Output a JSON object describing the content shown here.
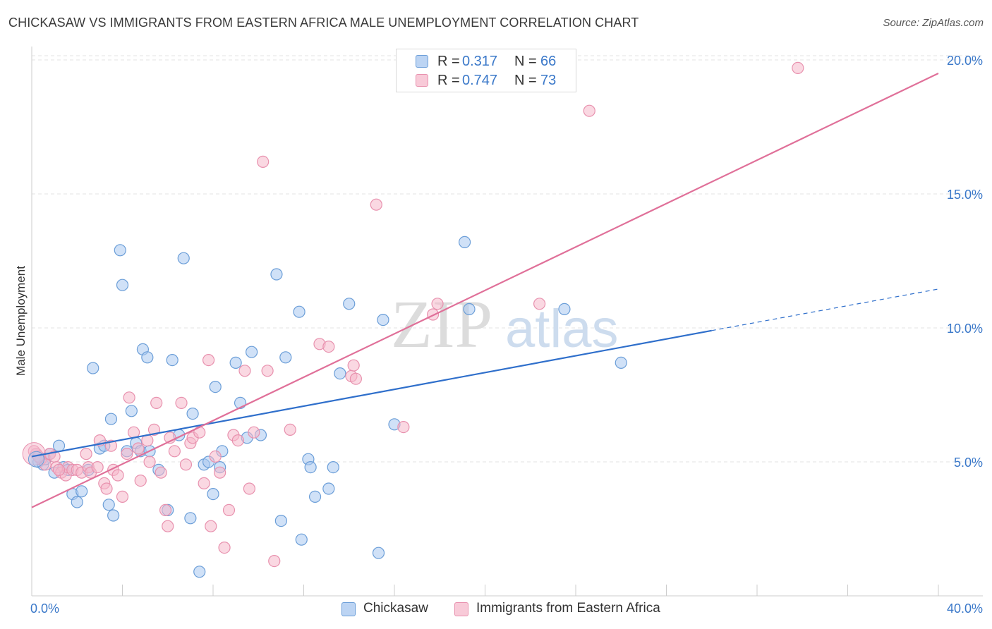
{
  "title": "CHICKASAW VS IMMIGRANTS FROM EASTERN AFRICA MALE UNEMPLOYMENT CORRELATION CHART",
  "source": "Source: ZipAtlas.com",
  "watermark": {
    "zip": "ZIP",
    "atlas": "atlas"
  },
  "colors": {
    "blue_fill": "#a9c8f0",
    "blue_stroke": "#6b9ed8",
    "blue_line": "#2f6fcb",
    "pink_fill": "#f5b8cb",
    "pink_stroke": "#e891ae",
    "pink_line": "#e07099",
    "tick_label": "#3a78c9"
  },
  "legend_top": [
    {
      "series": "Chickasaw",
      "r_label": "R =",
      "r_value": "0.317",
      "n_label": "N =",
      "n_value": "66"
    },
    {
      "series": "Immigrants from Eastern Africa",
      "r_label": "R =",
      "r_value": "0.747",
      "n_label": "N =",
      "n_value": "73"
    }
  ],
  "legend_bottom": [
    "Chickasaw",
    "Immigrants from Eastern Africa"
  ],
  "chart_data": {
    "type": "scatter",
    "title": "CHICKASAW VS IMMIGRANTS FROM EASTERN AFRICA MALE UNEMPLOYMENT CORRELATION CHART",
    "xlabel": "",
    "ylabel": "Male Unemployment",
    "xlim": [
      0,
      40
    ],
    "ylim": [
      0,
      20.5
    ],
    "x_tick_labels": [
      "0.0%",
      "40.0%"
    ],
    "y_ticks": [
      5,
      10,
      15,
      20
    ],
    "y_tick_labels": [
      "5.0%",
      "10.0%",
      "15.0%",
      "20.0%"
    ],
    "grid": true,
    "legend": "top-center",
    "series": [
      {
        "name": "Chickasaw",
        "r": 0.317,
        "n": 66,
        "trend": {
          "x0": 0,
          "y0": 5.2,
          "x1": 30,
          "y1": 9.9,
          "dashed_to_x": 40,
          "dashed_to_y": 11.45
        },
        "points": [
          [
            0.2,
            5.3
          ],
          [
            0.3,
            5.0
          ],
          [
            0.5,
            4.9
          ],
          [
            0.6,
            5.1
          ],
          [
            0.8,
            5.3
          ],
          [
            1.0,
            4.6
          ],
          [
            1.2,
            5.6
          ],
          [
            1.4,
            4.8
          ],
          [
            1.6,
            4.7
          ],
          [
            1.8,
            3.8
          ],
          [
            2.0,
            3.5
          ],
          [
            2.2,
            3.9
          ],
          [
            2.5,
            4.7
          ],
          [
            2.7,
            8.5
          ],
          [
            3.0,
            5.5
          ],
          [
            3.2,
            5.6
          ],
          [
            3.4,
            3.4
          ],
          [
            3.5,
            6.6
          ],
          [
            3.6,
            3.0
          ],
          [
            3.9,
            12.9
          ],
          [
            4.0,
            11.6
          ],
          [
            4.2,
            5.4
          ],
          [
            4.4,
            6.9
          ],
          [
            4.6,
            5.7
          ],
          [
            4.8,
            5.4
          ],
          [
            4.9,
            9.2
          ],
          [
            5.1,
            8.9
          ],
          [
            5.2,
            5.4
          ],
          [
            5.6,
            4.7
          ],
          [
            6.0,
            3.2
          ],
          [
            6.2,
            8.8
          ],
          [
            6.5,
            6.0
          ],
          [
            6.7,
            12.6
          ],
          [
            7.0,
            2.9
          ],
          [
            7.1,
            6.8
          ],
          [
            7.4,
            0.9
          ],
          [
            7.6,
            4.9
          ],
          [
            7.8,
            5.0
          ],
          [
            8.0,
            3.8
          ],
          [
            8.1,
            7.8
          ],
          [
            8.3,
            4.8
          ],
          [
            8.4,
            5.4
          ],
          [
            9.0,
            8.7
          ],
          [
            9.2,
            7.2
          ],
          [
            9.5,
            5.9
          ],
          [
            9.7,
            9.1
          ],
          [
            10.1,
            6.0
          ],
          [
            10.8,
            12.0
          ],
          [
            11.0,
            2.8
          ],
          [
            11.2,
            8.9
          ],
          [
            11.8,
            10.6
          ],
          [
            11.9,
            2.1
          ],
          [
            12.2,
            5.1
          ],
          [
            12.3,
            4.8
          ],
          [
            12.5,
            3.7
          ],
          [
            13.1,
            4.0
          ],
          [
            13.3,
            4.8
          ],
          [
            13.6,
            8.3
          ],
          [
            14.0,
            10.9
          ],
          [
            15.3,
            1.6
          ],
          [
            15.5,
            10.3
          ],
          [
            16.0,
            6.4
          ],
          [
            19.1,
            13.2
          ],
          [
            19.3,
            10.7
          ],
          [
            23.5,
            10.7
          ],
          [
            26.0,
            8.7
          ]
        ]
      },
      {
        "name": "Immigrants from Eastern Africa",
        "r": 0.747,
        "n": 73,
        "trend": {
          "x0": 0,
          "y0": 3.3,
          "x1": 40,
          "y1": 19.5
        },
        "points": [
          [
            0.2,
            5.3
          ],
          [
            0.4,
            5.1
          ],
          [
            0.6,
            4.9
          ],
          [
            0.8,
            5.3
          ],
          [
            1.0,
            5.2
          ],
          [
            1.1,
            4.8
          ],
          [
            1.3,
            4.6
          ],
          [
            1.5,
            4.5
          ],
          [
            1.6,
            4.8
          ],
          [
            1.8,
            4.7
          ],
          [
            2.0,
            4.7
          ],
          [
            2.2,
            4.6
          ],
          [
            2.4,
            5.3
          ],
          [
            2.5,
            4.8
          ],
          [
            2.6,
            4.6
          ],
          [
            2.9,
            4.8
          ],
          [
            3.0,
            5.8
          ],
          [
            3.2,
            4.2
          ],
          [
            3.3,
            4.0
          ],
          [
            3.5,
            5.6
          ],
          [
            3.6,
            4.7
          ],
          [
            3.8,
            4.5
          ],
          [
            4.0,
            3.7
          ],
          [
            4.2,
            5.3
          ],
          [
            4.3,
            7.4
          ],
          [
            4.5,
            6.1
          ],
          [
            4.7,
            5.5
          ],
          [
            4.8,
            4.3
          ],
          [
            5.1,
            5.8
          ],
          [
            5.2,
            5.0
          ],
          [
            5.4,
            6.2
          ],
          [
            5.5,
            7.2
          ],
          [
            5.7,
            4.6
          ],
          [
            5.9,
            3.2
          ],
          [
            6.0,
            2.6
          ],
          [
            6.1,
            5.9
          ],
          [
            6.3,
            5.4
          ],
          [
            6.6,
            7.2
          ],
          [
            6.8,
            4.9
          ],
          [
            7.0,
            5.7
          ],
          [
            7.1,
            5.9
          ],
          [
            7.4,
            6.1
          ],
          [
            7.6,
            4.2
          ],
          [
            7.8,
            8.8
          ],
          [
            7.9,
            2.6
          ],
          [
            8.1,
            5.2
          ],
          [
            8.3,
            4.6
          ],
          [
            8.5,
            1.8
          ],
          [
            8.7,
            3.2
          ],
          [
            8.9,
            6.0
          ],
          [
            9.1,
            5.8
          ],
          [
            9.4,
            8.4
          ],
          [
            9.6,
            4.0
          ],
          [
            9.8,
            6.1
          ],
          [
            10.2,
            16.2
          ],
          [
            10.4,
            8.4
          ],
          [
            10.7,
            1.3
          ],
          [
            11.4,
            6.2
          ],
          [
            12.7,
            9.4
          ],
          [
            13.1,
            9.3
          ],
          [
            14.1,
            8.2
          ],
          [
            14.2,
            8.6
          ],
          [
            14.3,
            8.1
          ],
          [
            15.2,
            14.6
          ],
          [
            16.4,
            6.3
          ],
          [
            17.7,
            10.5
          ],
          [
            17.9,
            10.9
          ],
          [
            22.4,
            10.9
          ],
          [
            24.6,
            18.1
          ],
          [
            33.8,
            19.7
          ],
          [
            0.1,
            5.4
          ],
          [
            0.3,
            5.2
          ],
          [
            1.2,
            4.7
          ]
        ]
      }
    ]
  }
}
